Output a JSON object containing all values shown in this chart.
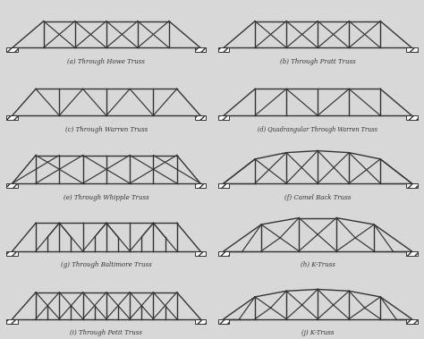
{
  "background_color": "#d8d8d8",
  "line_color": "#333333",
  "lw": 1.0,
  "labels": [
    "(a) Through Howe Truss",
    "(b) Through Pratt Truss",
    "(c) Through Warren Truss",
    "(d) Quadrangular Through Warren Truss",
    "(e) Through Whipple Truss",
    "(f) Camel Back Truss",
    "(g) Through Baltimore Truss",
    "(h) K-Truss",
    "(i) Through Petit Truss",
    "(j) K-Truss"
  ],
  "label_fontsize": 5.0
}
